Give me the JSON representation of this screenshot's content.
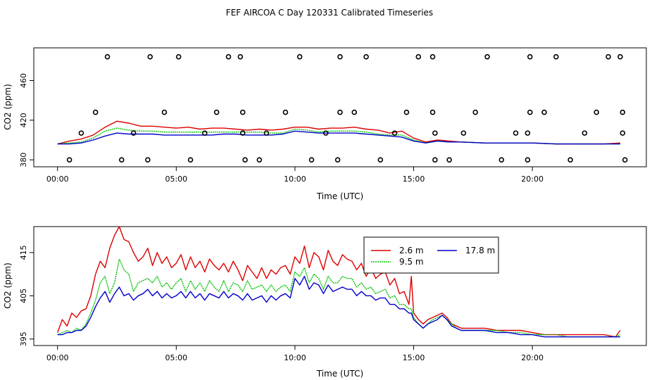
{
  "title": "FEF AIRCOA C  Day 120331  Calibrated Timeseries",
  "colors": {
    "s26": "#dd0000",
    "s95": "#00c000",
    "s178": "#0000cc",
    "frame": "#000000"
  },
  "chart_data": [
    {
      "type": "line",
      "title": "FEF AIRCOA C  Day 120331  Calibrated Timeseries",
      "xlabel": "Time (UTC)",
      "ylabel": "CO2 (ppm)",
      "xlim_hours": [
        -1.0,
        24.8
      ],
      "ylim": [
        373,
        493
      ],
      "x_ticks_hours": [
        0,
        5,
        10,
        15,
        20
      ],
      "x_tick_labels": [
        "00:00",
        "05:00",
        "10:00",
        "15:00",
        "20:00"
      ],
      "y_ticks": [
        380,
        420,
        460
      ],
      "y_tick_labels": [
        "380",
        "420",
        "460"
      ],
      "x": [
        0.0,
        0.5,
        1.0,
        1.5,
        2.0,
        2.5,
        3.0,
        3.5,
        4.0,
        4.5,
        5.0,
        5.5,
        6.0,
        6.5,
        7.0,
        7.5,
        8.0,
        8.5,
        9.0,
        9.5,
        10.0,
        10.5,
        11.0,
        11.5,
        12.0,
        12.5,
        13.0,
        13.5,
        14.0,
        14.5,
        15.0,
        15.5,
        16.0,
        16.5,
        17.0,
        18.0,
        19.0,
        20.0,
        21.0,
        22.0,
        23.0,
        23.7
      ],
      "series": [
        {
          "name": "2.6 m",
          "values": [
            396,
            399,
            401,
            405,
            413,
            419,
            417,
            414,
            414,
            413,
            412,
            413,
            411,
            412,
            412,
            411,
            410,
            411,
            410,
            411,
            413,
            413,
            411,
            412,
            412,
            413,
            411,
            410,
            407,
            409,
            402,
            398,
            400,
            399,
            398,
            397,
            397,
            397,
            396,
            396,
            396,
            397
          ]
        },
        {
          "name": "9.5 m",
          "values": [
            396,
            397,
            398,
            402,
            409,
            412,
            410,
            409,
            409,
            408,
            408,
            408,
            408,
            408,
            408,
            408,
            408,
            408,
            407,
            407,
            411,
            410,
            408,
            409,
            409,
            409,
            408,
            406,
            405,
            405,
            400,
            397,
            399,
            398,
            398,
            397,
            397,
            397,
            396,
            396,
            396,
            396
          ]
        },
        {
          "name": "17.8 m",
          "values": [
            396,
            396,
            397,
            400,
            404,
            407,
            406,
            406,
            406,
            405,
            405,
            405,
            405,
            405,
            406,
            406,
            405,
            405,
            405,
            406,
            409,
            408,
            407,
            407,
            407,
            407,
            406,
            405,
            404,
            403,
            399,
            397,
            399,
            398,
            398,
            397,
            397,
            397,
            396,
            396,
            396,
            396
          ]
        }
      ],
      "calibration_points": [
        {
          "x": 0.5,
          "y": 380
        },
        {
          "x": 1.0,
          "y": 407
        },
        {
          "x": 1.6,
          "y": 428
        },
        {
          "x": 2.1,
          "y": 484
        },
        {
          "x": 2.7,
          "y": 380
        },
        {
          "x": 3.2,
          "y": 407
        },
        {
          "x": 3.8,
          "y": 380
        },
        {
          "x": 3.9,
          "y": 484
        },
        {
          "x": 4.5,
          "y": 428
        },
        {
          "x": 5.1,
          "y": 484
        },
        {
          "x": 5.6,
          "y": 380
        },
        {
          "x": 6.2,
          "y": 407
        },
        {
          "x": 6.7,
          "y": 428
        },
        {
          "x": 7.2,
          "y": 484
        },
        {
          "x": 7.7,
          "y": 484
        },
        {
          "x": 7.8,
          "y": 428
        },
        {
          "x": 7.8,
          "y": 407
        },
        {
          "x": 7.9,
          "y": 380
        },
        {
          "x": 8.5,
          "y": 380
        },
        {
          "x": 8.8,
          "y": 407
        },
        {
          "x": 9.6,
          "y": 428
        },
        {
          "x": 10.2,
          "y": 484
        },
        {
          "x": 10.7,
          "y": 380
        },
        {
          "x": 11.3,
          "y": 407
        },
        {
          "x": 11.8,
          "y": 380
        },
        {
          "x": 11.9,
          "y": 428
        },
        {
          "x": 11.9,
          "y": 484
        },
        {
          "x": 12.5,
          "y": 428
        },
        {
          "x": 13.0,
          "y": 484
        },
        {
          "x": 13.6,
          "y": 380
        },
        {
          "x": 14.2,
          "y": 407
        },
        {
          "x": 14.7,
          "y": 428
        },
        {
          "x": 15.2,
          "y": 484
        },
        {
          "x": 15.8,
          "y": 484
        },
        {
          "x": 15.8,
          "y": 428
        },
        {
          "x": 15.9,
          "y": 407
        },
        {
          "x": 15.9,
          "y": 380
        },
        {
          "x": 16.5,
          "y": 380
        },
        {
          "x": 17.1,
          "y": 407
        },
        {
          "x": 17.6,
          "y": 428
        },
        {
          "x": 18.1,
          "y": 484
        },
        {
          "x": 18.7,
          "y": 380
        },
        {
          "x": 19.3,
          "y": 407
        },
        {
          "x": 19.8,
          "y": 380
        },
        {
          "x": 19.8,
          "y": 407
        },
        {
          "x": 19.9,
          "y": 428
        },
        {
          "x": 19.9,
          "y": 484
        },
        {
          "x": 20.5,
          "y": 428
        },
        {
          "x": 21.0,
          "y": 484
        },
        {
          "x": 21.6,
          "y": 380
        },
        {
          "x": 22.2,
          "y": 407
        },
        {
          "x": 22.7,
          "y": 428
        },
        {
          "x": 23.2,
          "y": 484
        },
        {
          "x": 23.7,
          "y": 484
        },
        {
          "x": 23.8,
          "y": 428
        },
        {
          "x": 23.8,
          "y": 407
        },
        {
          "x": 23.9,
          "y": 380
        }
      ]
    },
    {
      "type": "line",
      "xlabel": "Time (UTC)",
      "ylabel": "CO2 (ppm)",
      "xlim_hours": [
        -1.0,
        24.8
      ],
      "ylim": [
        393.5,
        421
      ],
      "x_ticks_hours": [
        0,
        5,
        10,
        15,
        20
      ],
      "x_tick_labels": [
        "00:00",
        "05:00",
        "10:00",
        "15:00",
        "20:00"
      ],
      "y_ticks": [
        395,
        405,
        415
      ],
      "y_tick_labels": [
        "395",
        "405",
        "415"
      ],
      "legend": {
        "position": "top-center",
        "entries": [
          "2.6 m",
          "9.5 m",
          "17.8 m"
        ]
      },
      "x": [
        0.0,
        0.2,
        0.4,
        0.6,
        0.8,
        1.0,
        1.2,
        1.4,
        1.6,
        1.8,
        2.0,
        2.2,
        2.4,
        2.6,
        2.8,
        3.0,
        3.2,
        3.4,
        3.6,
        3.8,
        4.0,
        4.2,
        4.4,
        4.6,
        4.8,
        5.0,
        5.2,
        5.4,
        5.6,
        5.8,
        6.0,
        6.2,
        6.4,
        6.6,
        6.8,
        7.0,
        7.2,
        7.4,
        7.6,
        7.8,
        8.0,
        8.2,
        8.4,
        8.6,
        8.8,
        9.0,
        9.2,
        9.4,
        9.6,
        9.8,
        10.0,
        10.2,
        10.4,
        10.6,
        10.8,
        11.0,
        11.2,
        11.4,
        11.6,
        11.8,
        12.0,
        12.2,
        12.4,
        12.6,
        12.8,
        13.0,
        13.2,
        13.4,
        13.6,
        13.8,
        14.0,
        14.2,
        14.4,
        14.6,
        14.8,
        14.9,
        15.0,
        15.2,
        15.4,
        15.6,
        15.8,
        16.0,
        16.2,
        16.4,
        16.6,
        16.8,
        17.0,
        17.5,
        18.0,
        18.5,
        19.0,
        19.5,
        20.0,
        20.5,
        21.0,
        21.5,
        22.0,
        22.5,
        23.0,
        23.5,
        23.7
      ],
      "series": [
        {
          "name": "2.6 m",
          "values": [
            396.5,
            399.5,
            398.0,
            401.0,
            400.0,
            401.5,
            402.0,
            405.0,
            410.0,
            413.0,
            411.5,
            416.0,
            419.0,
            421.0,
            418.0,
            417.5,
            415.0,
            413.0,
            414.0,
            416.0,
            412.0,
            415.0,
            412.5,
            414.0,
            411.5,
            412.5,
            414.5,
            411.0,
            414.0,
            411.5,
            413.0,
            410.5,
            413.5,
            412.0,
            411.0,
            412.5,
            410.5,
            413.0,
            411.0,
            408.5,
            412.0,
            410.5,
            409.0,
            411.5,
            409.0,
            411.0,
            410.0,
            411.5,
            412.0,
            410.0,
            414.0,
            412.5,
            416.5,
            411.5,
            415.0,
            414.0,
            411.0,
            415.5,
            413.0,
            412.0,
            414.5,
            413.5,
            413.0,
            411.0,
            412.5,
            409.5,
            411.5,
            409.0,
            410.0,
            410.5,
            407.5,
            409.0,
            405.5,
            406.0,
            403.0,
            409.5,
            401.0,
            399.5,
            398.5,
            399.5,
            400.0,
            400.5,
            401.0,
            400.0,
            398.5,
            398.0,
            397.5,
            397.5,
            397.5,
            397.0,
            397.0,
            397.0,
            396.5,
            396.0,
            396.0,
            396.0,
            396.0,
            396.0,
            396.0,
            395.5,
            397.0
          ]
        },
        {
          "name": "9.5 m",
          "values": [
            396.0,
            396.5,
            397.0,
            396.5,
            397.5,
            397.0,
            398.5,
            401.0,
            404.0,
            408.0,
            409.5,
            405.5,
            408.0,
            413.5,
            411.0,
            410.0,
            406.0,
            408.0,
            408.5,
            409.0,
            408.0,
            409.5,
            407.0,
            408.0,
            406.5,
            408.0,
            409.0,
            406.0,
            408.5,
            406.5,
            408.0,
            406.0,
            408.5,
            407.0,
            406.0,
            408.5,
            406.0,
            408.0,
            407.5,
            406.0,
            408.5,
            406.5,
            407.0,
            407.5,
            406.0,
            407.5,
            406.0,
            407.0,
            407.5,
            406.0,
            410.5,
            409.5,
            411.5,
            408.0,
            410.0,
            409.0,
            406.5,
            409.5,
            408.0,
            408.0,
            409.5,
            409.0,
            409.0,
            407.0,
            408.0,
            406.5,
            407.0,
            405.5,
            406.0,
            406.5,
            404.5,
            405.0,
            403.0,
            403.0,
            402.0,
            402.0,
            400.0,
            398.5,
            397.5,
            398.5,
            399.5,
            400.0,
            400.5,
            399.5,
            398.5,
            397.5,
            397.0,
            397.0,
            397.0,
            397.0,
            396.5,
            396.5,
            396.0,
            396.0,
            396.0,
            395.5,
            395.5,
            395.5,
            395.5,
            395.5,
            396.0
          ]
        },
        {
          "name": "17.8 m",
          "values": [
            396.0,
            396.0,
            396.5,
            396.5,
            397.0,
            397.0,
            398.0,
            400.0,
            402.5,
            404.5,
            406.0,
            403.5,
            405.5,
            407.0,
            405.0,
            405.5,
            404.0,
            405.0,
            405.5,
            406.5,
            405.0,
            406.0,
            404.5,
            405.5,
            404.5,
            405.0,
            406.0,
            404.5,
            406.0,
            404.5,
            405.5,
            404.0,
            405.5,
            405.0,
            404.5,
            406.0,
            404.5,
            405.5,
            405.0,
            404.0,
            405.5,
            404.0,
            404.5,
            405.0,
            403.5,
            405.0,
            404.0,
            405.0,
            405.5,
            404.5,
            409.0,
            407.5,
            409.5,
            406.5,
            408.0,
            407.5,
            405.5,
            407.5,
            406.0,
            406.5,
            407.0,
            406.5,
            406.5,
            405.0,
            406.0,
            405.0,
            405.0,
            404.0,
            404.5,
            404.5,
            403.0,
            403.0,
            402.0,
            402.0,
            401.0,
            401.0,
            399.5,
            398.5,
            397.5,
            398.5,
            399.0,
            399.5,
            400.5,
            399.5,
            398.0,
            397.5,
            397.0,
            397.0,
            397.0,
            396.5,
            396.5,
            396.0,
            396.0,
            395.5,
            395.5,
            395.5,
            395.5,
            395.5,
            395.5,
            395.5,
            395.5
          ]
        }
      ]
    }
  ]
}
